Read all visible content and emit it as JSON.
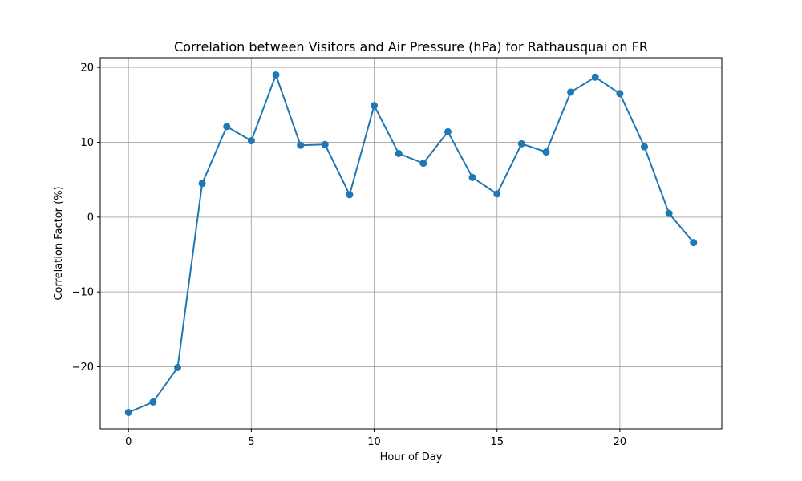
{
  "chart_data": {
    "type": "line",
    "title": "Correlation between Visitors and Air Pressure (hPa) for Rathausquai on FR",
    "xlabel": "Hour of Day",
    "ylabel": "Correlation Factor (%)",
    "xlim": [
      -1.15,
      24.15
    ],
    "ylim": [
      -28.3,
      21.3
    ],
    "x_ticks": [
      0,
      5,
      10,
      15,
      20
    ],
    "y_ticks": [
      -20,
      -10,
      0,
      10,
      20
    ],
    "y_tick_labels": [
      "−20",
      "−10",
      "0",
      "10",
      "20"
    ],
    "grid": true,
    "x": [
      0,
      1,
      2,
      3,
      4,
      5,
      6,
      7,
      8,
      9,
      10,
      11,
      12,
      13,
      14,
      15,
      16,
      17,
      18,
      19,
      20,
      21,
      22,
      23
    ],
    "series": [
      {
        "color": "#1f77b4",
        "marker": "circle",
        "values": [
          -26.1,
          -24.7,
          -20.1,
          4.5,
          12.1,
          10.2,
          19.0,
          9.6,
          9.7,
          3.0,
          14.9,
          8.5,
          7.2,
          11.4,
          5.3,
          3.1,
          9.8,
          8.7,
          16.7,
          18.7,
          16.5,
          9.4,
          0.5,
          -3.4
        ]
      }
    ]
  }
}
